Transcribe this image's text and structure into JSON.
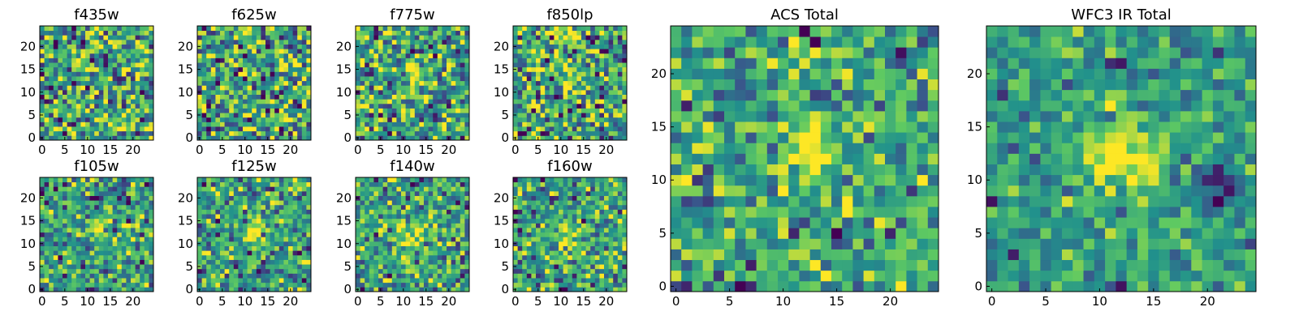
{
  "chart_data": {
    "type": "heatmap",
    "colormap": "viridis",
    "colormap_stops": [
      "#440154",
      "#3b528b",
      "#21918c",
      "#5ec962",
      "#fde725"
    ],
    "grid": false,
    "image_size": [
      25,
      25
    ],
    "panels": [
      {
        "id": "f435w",
        "title": "f435w",
        "xticks": [
          "0",
          "5",
          "10",
          "15",
          "20"
        ],
        "yticks": [
          "0",
          "5",
          "10",
          "15",
          "20"
        ],
        "xlim": [
          -0.5,
          24.5
        ],
        "ylim": [
          -0.5,
          24.5
        ],
        "noise_level": 0.28,
        "seed": 11,
        "features": []
      },
      {
        "id": "f625w",
        "title": "f625w",
        "xticks": [
          "0",
          "5",
          "10",
          "15",
          "20"
        ],
        "yticks": [
          "0",
          "5",
          "10",
          "15",
          "20"
        ],
        "xlim": [
          -0.5,
          24.5
        ],
        "ylim": [
          -0.5,
          24.5
        ],
        "noise_level": 0.28,
        "seed": 23,
        "features": []
      },
      {
        "id": "f775w",
        "title": "f775w",
        "xticks": [
          "0",
          "5",
          "10",
          "15",
          "20"
        ],
        "yticks": [
          "0",
          "5",
          "10",
          "15",
          "20"
        ],
        "xlim": [
          -0.5,
          24.5
        ],
        "ylim": [
          -0.5,
          24.5
        ],
        "noise_level": 0.26,
        "seed": 37,
        "features": [
          {
            "x": 13,
            "y": 13,
            "sigma": 2.0,
            "amp": 0.35
          }
        ]
      },
      {
        "id": "f850lp",
        "title": "f850lp",
        "xticks": [
          "0",
          "5",
          "10",
          "15",
          "20"
        ],
        "yticks": [
          "0",
          "5",
          "10",
          "15",
          "20"
        ],
        "xlim": [
          -0.5,
          24.5
        ],
        "ylim": [
          -0.5,
          24.5
        ],
        "noise_level": 0.27,
        "seed": 41,
        "features": [
          {
            "x": 11.5,
            "y": 22.5,
            "sigma": 1.2,
            "amp": 0.45
          },
          {
            "x": 12,
            "y": 12,
            "sigma": 2.0,
            "amp": 0.25
          }
        ]
      },
      {
        "id": "f105w",
        "title": "f105w",
        "xticks": [
          "0",
          "5",
          "10",
          "15",
          "20"
        ],
        "yticks": [
          "0",
          "5",
          "10",
          "15",
          "20"
        ],
        "xlim": [
          -0.5,
          24.5
        ],
        "ylim": [
          -0.5,
          24.5
        ],
        "noise_level": 0.22,
        "seed": 53,
        "features": [
          {
            "x": 12.5,
            "y": 14,
            "sigma": 1.1,
            "amp": 0.45
          },
          {
            "x": 13,
            "y": 20,
            "sigma": 1.0,
            "amp": -0.6
          }
        ]
      },
      {
        "id": "f125w",
        "title": "f125w",
        "xticks": [
          "0",
          "5",
          "10",
          "15",
          "20"
        ],
        "yticks": [
          "0",
          "5",
          "10",
          "15",
          "20"
        ],
        "xlim": [
          -0.5,
          24.5
        ],
        "ylim": [
          -0.5,
          24.5
        ],
        "noise_level": 0.22,
        "seed": 67,
        "features": [
          {
            "x": 12.5,
            "y": 12,
            "sigma": 2.3,
            "amp": 0.4
          }
        ]
      },
      {
        "id": "f140w",
        "title": "f140w",
        "xticks": [
          "0",
          "5",
          "10",
          "15",
          "20"
        ],
        "yticks": [
          "0",
          "5",
          "10",
          "15",
          "20"
        ],
        "xlim": [
          -0.5,
          24.5
        ],
        "ylim": [
          -0.5,
          24.5
        ],
        "noise_level": 0.22,
        "seed": 79,
        "features": [
          {
            "x": 12.5,
            "y": 12,
            "sigma": 2.2,
            "amp": 0.35
          }
        ]
      },
      {
        "id": "f160w",
        "title": "f160w",
        "xticks": [
          "0",
          "5",
          "10",
          "15",
          "20"
        ],
        "yticks": [
          "0",
          "5",
          "10",
          "15",
          "20"
        ],
        "xlim": [
          -0.5,
          24.5
        ],
        "ylim": [
          -0.5,
          24.5
        ],
        "noise_level": 0.22,
        "seed": 83,
        "features": [
          {
            "x": 12.5,
            "y": 12,
            "sigma": 2.2,
            "amp": 0.4
          }
        ]
      },
      {
        "id": "acs-total",
        "title": "ACS Total",
        "xticks": [
          "0",
          "5",
          "10",
          "15",
          "20"
        ],
        "yticks": [
          "0",
          "5",
          "10",
          "15",
          "20"
        ],
        "xlim": [
          -0.5,
          24.5
        ],
        "ylim": [
          -0.5,
          24.5
        ],
        "noise_level": 0.2,
        "seed": 97,
        "features": [
          {
            "x": 12.5,
            "y": 12.5,
            "sigma": 1.8,
            "amp": 0.4
          },
          {
            "x": 11.5,
            "y": 21.5,
            "sigma": 1.3,
            "amp": 0.3
          }
        ]
      },
      {
        "id": "wfc3-ir-total",
        "title": "WFC3 IR Total",
        "xticks": [
          "0",
          "5",
          "10",
          "15",
          "20"
        ],
        "yticks": [
          "0",
          "5",
          "10",
          "15",
          "20"
        ],
        "xlim": [
          -0.5,
          24.5
        ],
        "ylim": [
          -0.5,
          24.5
        ],
        "noise_level": 0.14,
        "seed": 101,
        "features": [
          {
            "x": 12.5,
            "y": 12.5,
            "sigma": 2.3,
            "amp": 0.45
          },
          {
            "x": 21,
            "y": 9,
            "sigma": 1.3,
            "amp": -0.5
          },
          {
            "x": 12.5,
            "y": 20.5,
            "sigma": 0.8,
            "amp": -0.5
          }
        ]
      }
    ]
  }
}
